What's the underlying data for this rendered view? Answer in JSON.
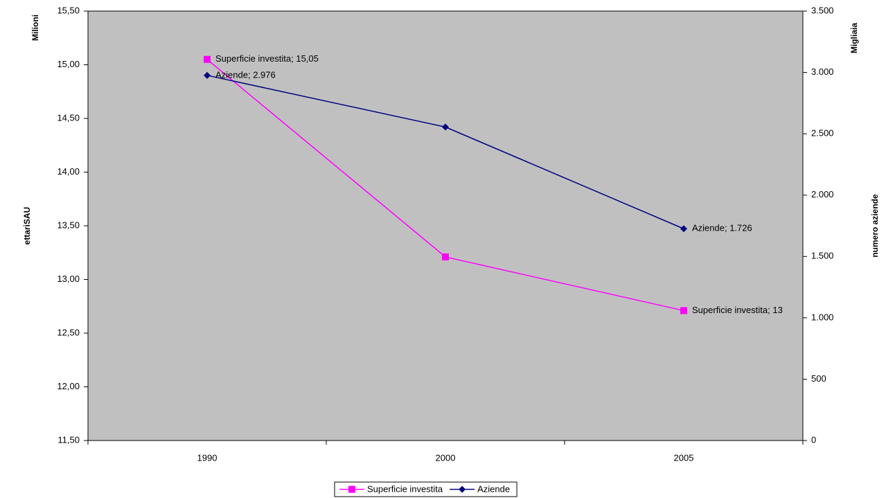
{
  "chart_data": {
    "type": "line",
    "categories": [
      "1990",
      "2000",
      "2005"
    ],
    "y_unit": "Milioni",
    "y_label": "ettariSAU",
    "y2_unit": "Migliaia",
    "y2_label": "numero aziende",
    "ylim": [
      11.5,
      15.5
    ],
    "yticks": [
      {
        "value": 11.5,
        "label": "11,50"
      },
      {
        "value": 12,
        "label": "12,00"
      },
      {
        "value": 12.5,
        "label": "12,50"
      },
      {
        "value": 13,
        "label": "13,00"
      },
      {
        "value": 13.5,
        "label": "13,50"
      },
      {
        "value": 14,
        "label": "14,00"
      },
      {
        "value": 14.5,
        "label": "14,50"
      },
      {
        "value": 15,
        "label": "15,00"
      },
      {
        "value": 15.5,
        "label": "15,50"
      }
    ],
    "y2lim": [
      0,
      3500
    ],
    "y2ticks": [
      0,
      500,
      {
        "value": 1000,
        "label": "1.000"
      },
      {
        "value": 1500,
        "label": "1.500"
      },
      {
        "value": 2000,
        "label": "2.000"
      },
      {
        "value": 2500,
        "label": "2.500"
      },
      {
        "value": 3000,
        "label": "3.000"
      },
      {
        "value": 3500,
        "label": "3.500"
      }
    ],
    "plot_background": "#c0c0c0",
    "legend": "bottom",
    "series": [
      {
        "name": "Superficie investita",
        "color": "#ff00ff",
        "marker": "square",
        "values": [
          15.05,
          13.21,
          12.71
        ],
        "value_labels": [
          "Superficie investita; 15,05",
          null,
          "Superficie investita; 13"
        ]
      },
      {
        "name": "Aziende",
        "color": "#000080",
        "marker": "diamond",
        "axis": "y2",
        "values": [
          2976,
          2555,
          1726
        ],
        "value_labels": [
          "Aziende; 2.976",
          null,
          "Aziende; 1.726"
        ]
      }
    ]
  }
}
